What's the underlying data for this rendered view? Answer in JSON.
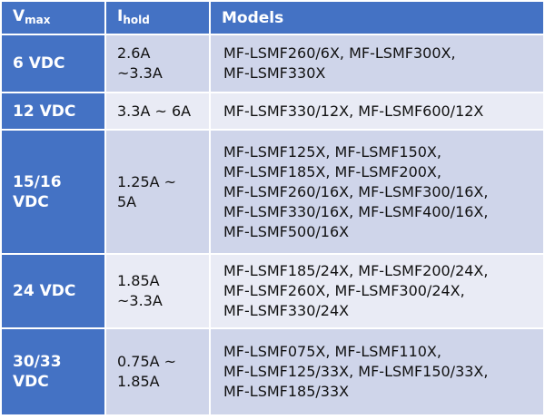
{
  "header": {
    "vmax_main": "V",
    "vmax_sub": "max",
    "ihold_main": "I",
    "ihold_sub": "hold",
    "models": "Models"
  },
  "colors": {
    "header": "#4472C4",
    "row_dark": "#CFD5EA",
    "row_light": "#E9EBF5"
  },
  "rows": [
    {
      "vmax": "6 VDC",
      "ihold": [
        "2.6A",
        "~3.3A"
      ],
      "models": [
        "MF-LSMF260/6X, MF-LSMF300X,",
        "MF-LSMF330X"
      ]
    },
    {
      "vmax": "12 VDC",
      "ihold": [
        "3.3A ~ 6A"
      ],
      "models": [
        "MF-LSMF330/12X, MF-LSMF600/12X"
      ]
    },
    {
      "vmax": "15/16 VDC",
      "ihold": [
        "1.25A ~",
        "5A"
      ],
      "models": [
        "MF-LSMF125X, MF-LSMF150X,",
        "MF-LSMF185X, MF-LSMF200X,",
        "MF-LSMF260/16X, MF-LSMF300/16X,",
        "MF-LSMF330/16X, MF-LSMF400/16X,",
        "MF-LSMF500/16X"
      ]
    },
    {
      "vmax": "24 VDC",
      "ihold": [
        "1.85A",
        "~3.3A"
      ],
      "models": [
        "MF-LSMF185/24X, MF-LSMF200/24X,",
        "MF-LSMF260X, MF-LSMF300/24X,",
        "MF-LSMF330/24X"
      ]
    },
    {
      "vmax": "30/33 VDC",
      "ihold": [
        "0.75A ~",
        "1.85A"
      ],
      "models": [
        "MF-LSMF075X, MF-LSMF110X,",
        "MF-LSMF125/33X, MF-LSMF150/33X,",
        "MF-LSMF185/33X"
      ]
    }
  ]
}
